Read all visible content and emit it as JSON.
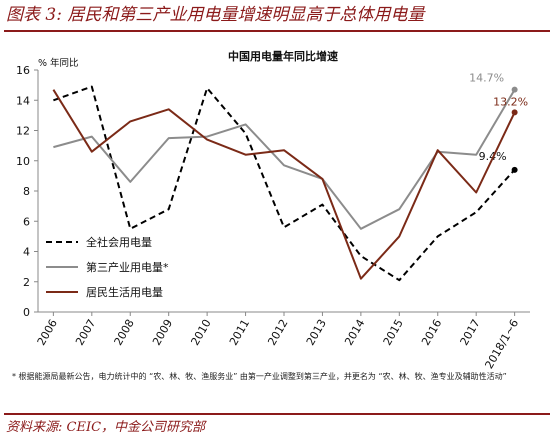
{
  "header": {
    "title": "图表 3:  居民和第三产业用电量增速明显高于总体用电量"
  },
  "footnote": "* 根据能源局最新公告，电力统计中的 “农、林、牧、渔服务业” 由第一产业调整到第三产业，并更名为 “农、林、牧、渔专业及辅助性活动”",
  "source": "资料来源:  CEIC，中金公司研究部",
  "colors": {
    "brand": "#8b1a1a",
    "series_total": "#000000",
    "series_tertiary": "#8c8c8c",
    "series_residential": "#7b2a17"
  },
  "chart_data": {
    "type": "line",
    "title": "中国用电量年同比增速",
    "ylabel": "% 年同比",
    "xlabel": "",
    "ylim": [
      0,
      16
    ],
    "yticks": [
      0,
      2,
      4,
      6,
      8,
      10,
      12,
      14,
      16
    ],
    "x_ticks": [
      "2006",
      "2007",
      "2008",
      "2009",
      "2010",
      "2011",
      "2012",
      "2013",
      "2014",
      "2015",
      "2016",
      "2017",
      "2018/1~6"
    ],
    "x": [
      2006.0,
      2006.25,
      2006.5,
      2006.75,
      2007.0,
      2007.25,
      2007.5,
      2007.75,
      2008.0,
      2008.25,
      2008.5,
      2008.75,
      2009.0,
      2009.25,
      2009.5,
      2009.75,
      2010.0,
      2010.25,
      2010.5,
      2010.75,
      2011.0,
      2011.25,
      2011.5,
      2011.75,
      2012.0,
      2012.25,
      2012.5,
      2012.75,
      2013.0,
      2013.25,
      2013.5,
      2013.75,
      2014.0,
      2014.25,
      2014.5,
      2014.75,
      2015.0,
      2015.25,
      2015.5,
      2015.75,
      2016.0,
      2016.25,
      2016.5,
      2016.75,
      2017.0,
      2017.25,
      2017.5,
      2017.75,
      2018.0
    ],
    "series": [
      {
        "name": "全社会用电量",
        "style": "dashed",
        "color": "#000000",
        "points": [
          [
            2006.0,
            14.0
          ],
          [
            2007.0,
            14.9
          ],
          [
            2008.0,
            5.5
          ],
          [
            2009.0,
            6.8
          ],
          [
            2010.0,
            14.8
          ],
          [
            2011.0,
            11.8
          ],
          [
            2012.0,
            5.6
          ],
          [
            2013.0,
            7.1
          ],
          [
            2014.0,
            3.7
          ],
          [
            2015.0,
            2.1
          ],
          [
            2016.0,
            5.0
          ],
          [
            2017.0,
            6.6
          ],
          [
            2018.0,
            9.4
          ]
        ],
        "end_label": "9.4%"
      },
      {
        "name": "第三产业用电量*",
        "style": "solid",
        "color": "#8c8c8c",
        "points": [
          [
            2006.0,
            10.9
          ],
          [
            2007.0,
            11.6
          ],
          [
            2008.0,
            8.6
          ],
          [
            2009.0,
            11.5
          ],
          [
            2010.0,
            11.6
          ],
          [
            2011.0,
            12.4
          ],
          [
            2012.0,
            9.7
          ],
          [
            2013.0,
            8.8
          ],
          [
            2014.0,
            5.5
          ],
          [
            2015.0,
            6.8
          ],
          [
            2016.0,
            10.6
          ],
          [
            2017.0,
            10.4
          ],
          [
            2018.0,
            14.7
          ]
        ],
        "end_label": "14.7%"
      },
      {
        "name": "居民生活用电量",
        "style": "solid",
        "color": "#7b2a17",
        "points": [
          [
            2006.0,
            14.7
          ],
          [
            2007.0,
            10.6
          ],
          [
            2008.0,
            12.6
          ],
          [
            2009.0,
            13.4
          ],
          [
            2010.0,
            11.4
          ],
          [
            2011.0,
            10.4
          ],
          [
            2012.0,
            10.7
          ],
          [
            2013.0,
            8.8
          ],
          [
            2014.0,
            2.2
          ],
          [
            2015.0,
            5.0
          ],
          [
            2016.0,
            10.7
          ],
          [
            2017.0,
            7.9
          ],
          [
            2018.0,
            13.2
          ]
        ],
        "end_label": "13.2%"
      }
    ],
    "legend": {
      "position": "bottom-left"
    },
    "grid": false
  }
}
